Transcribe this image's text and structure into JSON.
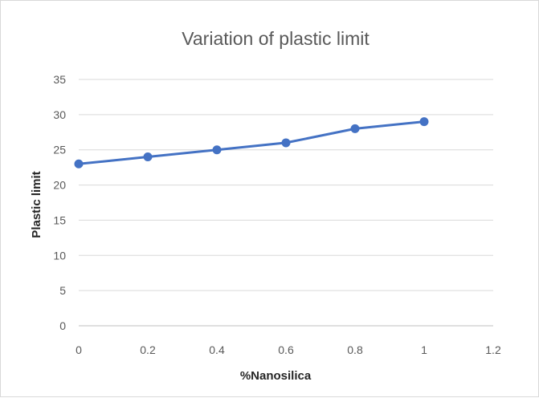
{
  "chart_data": {
    "type": "line",
    "title": "Variation of plastic limit",
    "xlabel": "%Nanosilica",
    "ylabel": "Plastic limit",
    "x": [
      0,
      0.2,
      0.4,
      0.6,
      0.8,
      1
    ],
    "series": [
      {
        "values": [
          23,
          24,
          25,
          26,
          28,
          29
        ],
        "color": "#4472c4"
      }
    ],
    "xlim": [
      0,
      1.2
    ],
    "ylim": [
      0,
      35
    ],
    "x_ticks": [
      "0",
      "0.2",
      "0.4",
      "0.6",
      "0.8",
      "1",
      "1.2"
    ],
    "y_ticks": [
      "0",
      "5",
      "10",
      "15",
      "20",
      "25",
      "30",
      "35"
    ],
    "grid": "horizontal",
    "legend": "none"
  }
}
